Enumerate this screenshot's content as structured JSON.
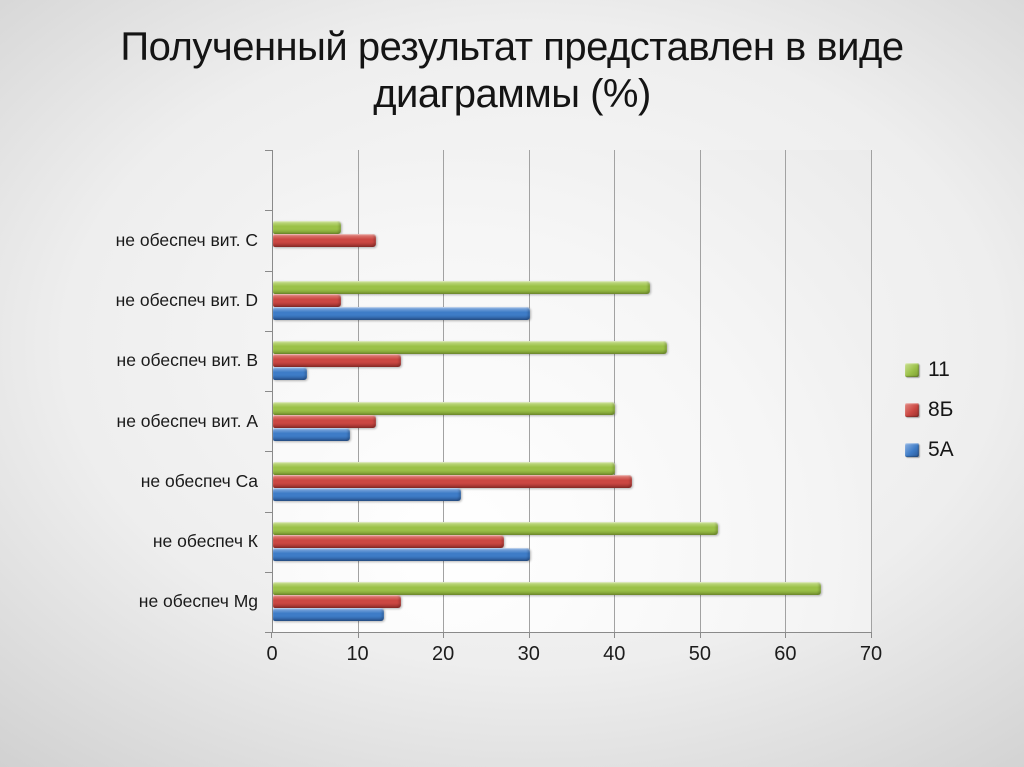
{
  "title": {
    "line1": "Полученный результат представлен в виде",
    "line2": "диаграммы (%)"
  },
  "chart_data": {
    "type": "bar",
    "orientation": "horizontal",
    "title": "Полученный результат представлен в виде диаграммы (%)",
    "categories": [
      "не обеспеч вит. C",
      "не обеспеч вит. D",
      "не обеспеч вит. B",
      "не обеспеч вит. A",
      "не обеспеч Ca",
      "не обеспеч К",
      "не обеспеч Mg"
    ],
    "series": [
      {
        "name": "11",
        "color": "#9BC148",
        "color_light": "#CADF92",
        "color_dark": "#7C9C32",
        "values": [
          8,
          44,
          46,
          40,
          40,
          52,
          64
        ]
      },
      {
        "name": "8Б",
        "color": "#CB4742",
        "color_light": "#E28B84",
        "color_dark": "#97302C",
        "values": [
          12,
          8,
          15,
          12,
          42,
          27,
          15
        ]
      },
      {
        "name": "5А",
        "color": "#3E7CC7",
        "color_light": "#8FB3E2",
        "color_dark": "#2B5896",
        "values": [
          0,
          30,
          4,
          9,
          22,
          30,
          13
        ]
      }
    ],
    "x_ticks": [
      0,
      10,
      20,
      30,
      40,
      50,
      60,
      70
    ],
    "xlim": [
      0,
      70
    ],
    "grid": true,
    "legend_position": "right",
    "empty_top_band": true,
    "axis_color": "#8a8a8a",
    "gridline_color": "#a2a2a2"
  }
}
